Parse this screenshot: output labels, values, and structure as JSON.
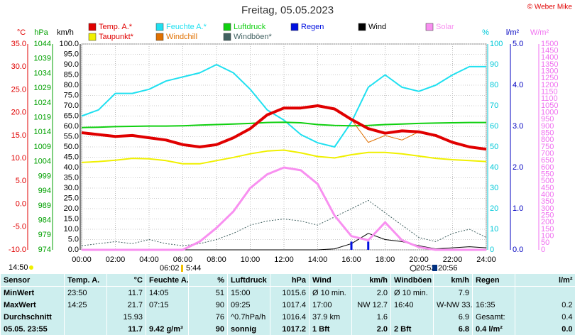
{
  "chart_data": {
    "type": "line",
    "title": "Freitag, 05.05.2023",
    "copyright": "© Weber Mike",
    "annotations": [
      "14:50",
      "06:02",
      "5:44",
      "20:53",
      "20:56"
    ],
    "grid": true,
    "xlim": [
      0,
      24
    ],
    "xticks": [
      {
        "value": 0,
        "label": "00:00"
      },
      {
        "value": 2,
        "label": "02:00"
      },
      {
        "value": 4,
        "label": "04:00"
      },
      {
        "value": 6,
        "label": "06:00"
      },
      {
        "value": 8,
        "label": "08:00"
      },
      {
        "value": 10,
        "label": "10:00"
      },
      {
        "value": 12,
        "label": "12:00"
      },
      {
        "value": 14,
        "label": "14:00"
      },
      {
        "value": 16,
        "label": "16:00"
      },
      {
        "value": 18,
        "label": "18:00"
      },
      {
        "value": 20,
        "label": "20:00"
      },
      {
        "value": 22,
        "label": "22:00"
      },
      {
        "value": 24,
        "label": "24:00"
      }
    ],
    "x": [
      0,
      1,
      2,
      3,
      4,
      5,
      6,
      7,
      8,
      9,
      10,
      11,
      12,
      13,
      14,
      15,
      16,
      17,
      18,
      19,
      20,
      21,
      22,
      23,
      24
    ],
    "axes": [
      {
        "unit": "°C",
        "color": "#e00000",
        "lim": [
          -10,
          35
        ],
        "ticks": [
          {
            "value": -10,
            "label": "-10.0"
          },
          {
            "value": -5,
            "label": "-5.0"
          },
          {
            "value": 0,
            "label": "0.0"
          },
          {
            "value": 5,
            "label": "5.0"
          },
          {
            "value": 10,
            "label": "10.0"
          },
          {
            "value": 15,
            "label": "15.0"
          },
          {
            "value": 20,
            "label": "20.0"
          },
          {
            "value": 25,
            "label": "25.0"
          },
          {
            "value": 30,
            "label": "30.0"
          },
          {
            "value": 35,
            "label": "35.0"
          }
        ]
      },
      {
        "unit": "hPa",
        "color": "#00a000",
        "lim": [
          974,
          1044
        ],
        "ticks": [
          974,
          979,
          984,
          989,
          994,
          999,
          1004,
          1009,
          1014,
          1019,
          1024,
          1029,
          1034,
          1039,
          1044
        ]
      },
      {
        "unit": "km/h",
        "color": "#000000",
        "lim": [
          0,
          100
        ],
        "ticks": [
          {
            "value": 0,
            "label": "0.0"
          },
          {
            "value": 5,
            "label": "5.0"
          },
          {
            "value": 10,
            "label": "10.0"
          },
          {
            "value": 15,
            "label": "15.0"
          },
          {
            "value": 20,
            "label": "20.0"
          },
          {
            "value": 25,
            "label": "25.0"
          },
          {
            "value": 30,
            "label": "30.0"
          },
          {
            "value": 35,
            "label": "35.0"
          },
          {
            "value": 40,
            "label": "40.0"
          },
          {
            "value": 45,
            "label": "45.0"
          },
          {
            "value": 50,
            "label": "50.0"
          },
          {
            "value": 55,
            "label": "55.0"
          },
          {
            "value": 60,
            "label": "60.0"
          },
          {
            "value": 65,
            "label": "65.0"
          },
          {
            "value": 70,
            "label": "70.0"
          },
          {
            "value": 75,
            "label": "75.0"
          },
          {
            "value": 80,
            "label": "80.0"
          },
          {
            "value": 85,
            "label": "85.0"
          },
          {
            "value": 90,
            "label": "90.0"
          },
          {
            "value": 95,
            "label": "95.0"
          },
          {
            "value": 100,
            "label": "100.0"
          }
        ]
      },
      {
        "unit": "%",
        "color": "#00c8d8",
        "lim": [
          0,
          100
        ],
        "ticks": [
          0,
          10,
          20,
          30,
          40,
          50,
          60,
          70,
          80,
          90,
          100
        ]
      },
      {
        "unit": "l/m²",
        "color": "#0000c0",
        "lim": [
          0,
          5
        ],
        "ticks": [
          {
            "value": 0,
            "label": "0.0"
          },
          {
            "value": 1,
            "label": "1.0"
          },
          {
            "value": 2,
            "label": "2.0"
          },
          {
            "value": 3,
            "label": "3.0"
          },
          {
            "value": 4,
            "label": "4.0"
          },
          {
            "value": 5,
            "label": "5.0"
          }
        ]
      },
      {
        "unit": "W/m²",
        "color": "#f070f0",
        "lim": [
          0,
          1500
        ],
        "ticks": [
          0,
          50,
          100,
          150,
          200,
          250,
          300,
          350,
          400,
          450,
          500,
          550,
          600,
          650,
          700,
          750,
          800,
          850,
          900,
          950,
          1000,
          1050,
          1100,
          1150,
          1200,
          1250,
          1300,
          1350,
          1400,
          1450,
          1500
        ]
      }
    ],
    "series": [
      {
        "name": "Temp. A.*",
        "color": "#e00000",
        "axis": 0,
        "style": "line",
        "width": 4,
        "values": [
          15.6,
          15.2,
          14.8,
          15.0,
          14.5,
          14.0,
          13.0,
          12.5,
          13.0,
          14.5,
          16.5,
          19.5,
          21.0,
          21.0,
          21.5,
          20.8,
          18.5,
          16.5,
          15.5,
          16.0,
          15.8,
          15.0,
          13.5,
          12.5,
          12.0
        ]
      },
      {
        "name": "Feuchte A.*",
        "color": "#20e0f0",
        "axis": 3,
        "style": "line",
        "width": 2,
        "values": [
          65,
          68,
          76,
          76,
          78,
          82,
          84,
          86,
          90,
          86,
          78,
          68,
          63,
          56,
          52,
          50,
          62,
          79,
          85,
          79,
          77,
          80,
          85,
          89,
          89
        ]
      },
      {
        "name": "Luftdruck",
        "color": "#10d010",
        "axis": 1,
        "style": "line",
        "width": 2,
        "values": [
          1015.6,
          1015.7,
          1015.9,
          1016.0,
          1016.1,
          1016.1,
          1016.2,
          1016.4,
          1016.6,
          1016.8,
          1017.0,
          1017.3,
          1017.4,
          1017.2,
          1016.6,
          1016.3,
          1016.2,
          1016.3,
          1016.6,
          1016.8,
          1017.0,
          1017.1,
          1017.2,
          1017.3,
          1017.3
        ]
      },
      {
        "name": "Regen",
        "color": "#0010e0",
        "axis": 4,
        "style": "bar",
        "width": 3,
        "values": [
          0,
          0,
          0,
          0,
          0,
          0,
          0,
          0,
          0,
          0,
          0,
          0,
          0,
          0,
          0,
          0,
          0.2,
          0.2,
          0,
          0,
          0,
          0,
          0,
          0,
          0
        ]
      },
      {
        "name": "Wind",
        "color": "#000000",
        "axis": 2,
        "style": "line",
        "width": 1,
        "values": [
          0,
          0,
          0,
          0,
          0,
          0,
          0,
          0,
          0,
          0,
          0,
          0,
          0,
          0,
          0,
          0.5,
          3,
          8,
          5,
          4,
          2,
          0.5,
          1,
          1.5,
          1
        ]
      },
      {
        "name": "Solar",
        "color": "#f890f0",
        "axis": 5,
        "style": "line",
        "width": 3,
        "values": [
          0,
          0,
          0,
          0,
          0,
          0,
          0,
          60,
          160,
          280,
          450,
          550,
          600,
          580,
          480,
          250,
          100,
          70,
          200,
          70,
          20,
          0,
          0,
          0,
          0
        ]
      },
      {
        "name": "Taupunkt*",
        "color": "#f0f000",
        "axis": 0,
        "style": "line",
        "width": 2,
        "values": [
          9.1,
          9.3,
          9.6,
          10.0,
          9.9,
          9.5,
          8.8,
          8.8,
          9.5,
          10.2,
          11.0,
          11.6,
          11.8,
          11.2,
          10.4,
          10.1,
          10.8,
          11.3,
          11.3,
          11.0,
          10.5,
          10.0,
          9.7,
          9.5,
          9.3
        ]
      },
      {
        "name": "Windchill",
        "color": "#e07000",
        "axis": 0,
        "style": "line",
        "width": 1,
        "values": [
          15.6,
          15.2,
          14.8,
          15.0,
          14.5,
          14.0,
          13.0,
          12.5,
          13.0,
          14.5,
          16.5,
          19.5,
          21.0,
          21.0,
          21.5,
          20.8,
          18.5,
          13.5,
          15.0,
          14.0,
          15.8,
          15.0,
          13.5,
          12.5,
          12.0
        ]
      },
      {
        "name": "Windböen*",
        "color": "#406060",
        "axis": 2,
        "style": "dashed",
        "width": 1,
        "values": [
          2,
          3,
          4,
          3,
          5,
          3,
          2,
          3,
          5,
          8,
          12,
          14,
          15,
          14,
          12,
          16,
          20,
          24,
          18,
          12,
          6,
          4,
          8,
          10,
          6
        ]
      }
    ]
  },
  "table": {
    "headers": [
      "Sensor",
      "Temp. A.",
      "°C",
      "Feuchte A.",
      "%",
      "Luftdruck",
      "hPa",
      "Wind",
      "km/h",
      "Windböen",
      "km/h",
      "Regen",
      "l/m²"
    ],
    "rows": [
      [
        "MinWert",
        "23:50",
        "11.7",
        "14:05",
        "51",
        "15:00",
        "1015.6",
        "Ø 10 min.",
        "2.0",
        "Ø 10 min.",
        "7.9",
        null,
        null
      ],
      [
        "MaxWert",
        "14:25",
        "21.7",
        "07:15",
        "90",
        "09:25",
        "1017.4",
        "17:00",
        "NW 12.7",
        "16:40",
        "W-NW 33.8",
        "16:35",
        "0.2"
      ],
      [
        "Durchschnitt",
        null,
        "15.93",
        null,
        "76",
        "^0.7hPa/h",
        "1016.4",
        "37.9 km",
        "1.6",
        null,
        "6.9",
        "Gesamt:",
        "0.4"
      ],
      [
        "05.05. 23:55",
        null,
        "11.7",
        "9.42 g/m³",
        "90",
        "sonnig",
        "1017.2",
        "1 Bft",
        "2.0",
        "2 Bft",
        "6.8",
        "0.4 l/m²",
        "0.0"
      ]
    ]
  }
}
